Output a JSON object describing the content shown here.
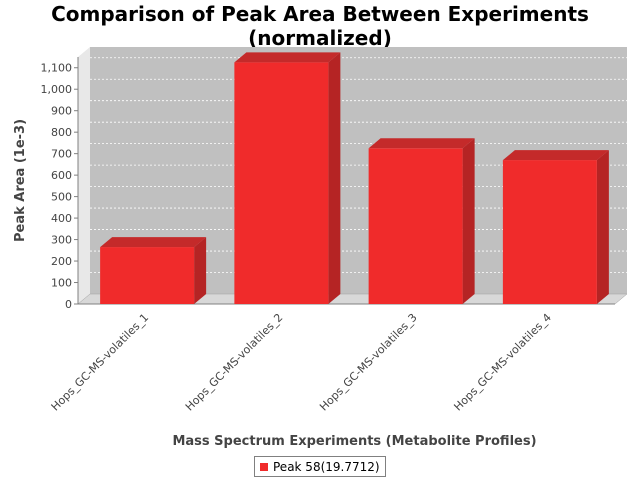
{
  "chart_data": {
    "type": "bar",
    "title": [
      "Comparison of Peak Area Between Experiments",
      "(normalized)"
    ],
    "xlabel": "Mass Spectrum Experiments (Metabolite Profiles)",
    "ylabel": "Peak Area (1e-3)",
    "categories": [
      "Hops_GC-MS-volatiles_1",
      "Hops_GC-MS-volatiles_2",
      "Hops_GC-MS-volatiles_3",
      "Hops_GC-MS-volatiles_4"
    ],
    "series": [
      {
        "name": "Peak 58(19.7712)",
        "values": [
          265,
          1125,
          725,
          670
        ],
        "color": "#f02b2b"
      }
    ],
    "ylim": [
      0,
      1150
    ],
    "yticks": [
      0,
      100,
      200,
      300,
      400,
      500,
      600,
      700,
      800,
      900,
      1000,
      1100
    ],
    "ytick_labels": [
      "0",
      "100",
      "200",
      "300",
      "400",
      "500",
      "600",
      "700",
      "800",
      "900",
      "1,000",
      "1,100"
    ],
    "grid": true,
    "legend_position": "bottom-center",
    "plot_background": "#c0c0c0"
  }
}
